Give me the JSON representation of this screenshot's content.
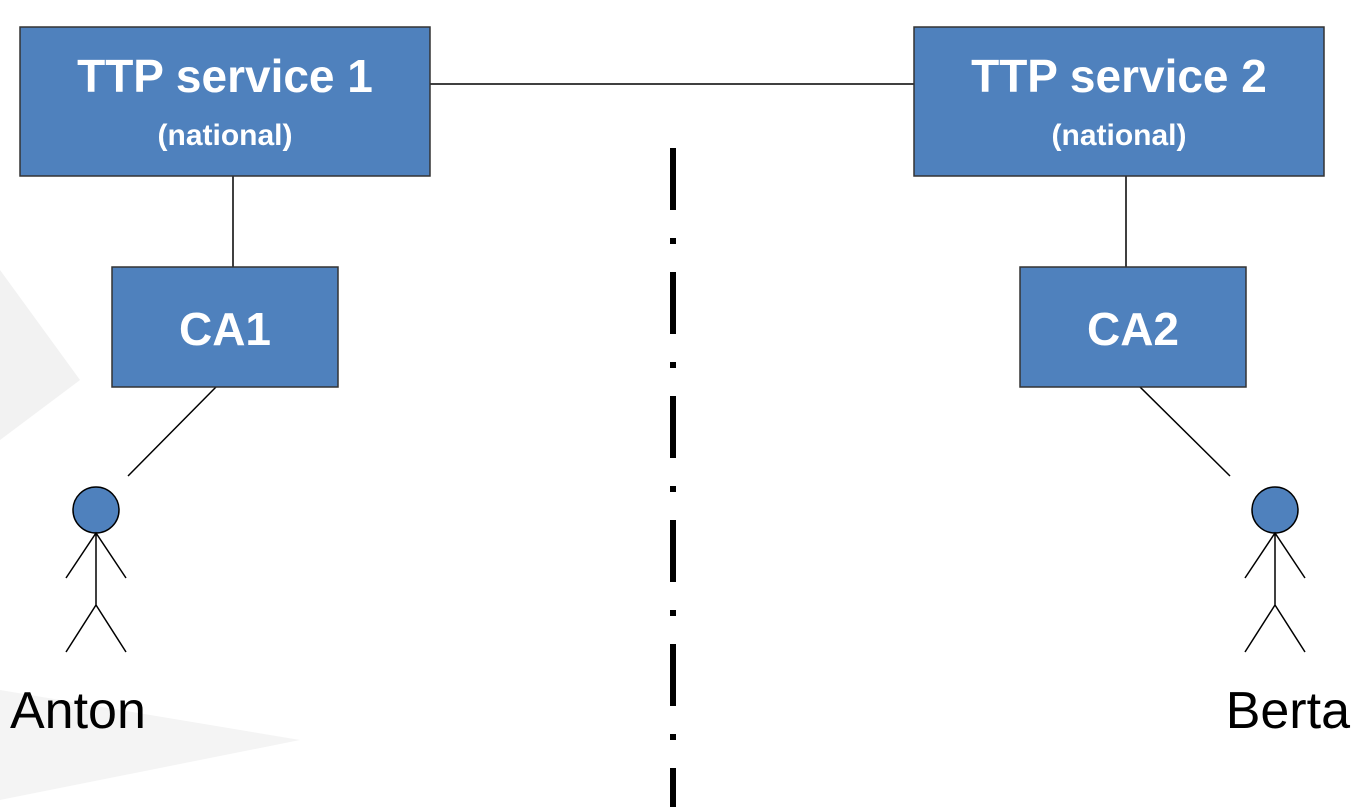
{
  "nodes": [
    {
      "label": "TTP service 1",
      "sublabel": "(national)"
    },
    {
      "label": "TTP service 2",
      "sublabel": "(national)"
    },
    {
      "label": "CA1"
    },
    {
      "label": "CA2"
    },
    {
      "label": "Anton"
    },
    {
      "label": "Berta"
    }
  ]
}
